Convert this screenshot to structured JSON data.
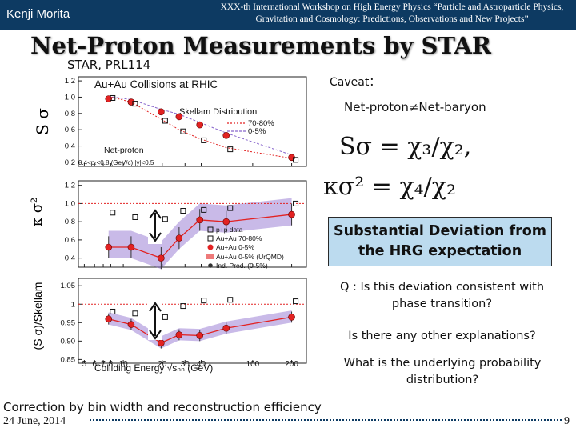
{
  "header": {
    "author": "Kenji Morita",
    "conference": "XXX-th International Workshop on High Energy Physics “Particle and Astroparticle Physics, Gravitation and Cosmology: Predictions, Observations and New Projects”",
    "bg_color": "#0d3a62"
  },
  "slide": {
    "title": "Net-Proton Measurements by STAR",
    "reference": "STAR, PRL114",
    "caveat": "Caveat：",
    "caveat_detail": "Net-proton≠Net-baryon",
    "formula_1": "Sσ = χ₃/χ₂,",
    "formula_2": "κσ² = χ₄/χ₂",
    "highlight": "Substantial Deviation from the HRG expectation",
    "highlight_bg": "#bcdbef",
    "question_1": "Q : Is this deviation consistent with phase transition?",
    "question_2": "Is there any other explanations?",
    "question_3": "What is the underlying probability distribution?",
    "footnote": "Correction by bin width and reconstruction efficiency"
  },
  "footer": {
    "date": "24 June, 2014",
    "page": "9"
  },
  "plot": {
    "panel_title": "Au+Au Collisions at RHIC",
    "skellam_legend_title": "Skellam Distribution",
    "skellam_legend": [
      "70-80%",
      "0-5%"
    ],
    "net_proton_label": "Net-proton",
    "cut_label": "0.4<pₜ<0.8 (GeV/c) |y|<0.5",
    "legend": [
      "p+p data",
      "Au+Au 70-80%",
      "Au+Au 0-5%",
      "Au+Au 0-5% (UrQMD)",
      "Ind. Prod. (0-5%)"
    ],
    "ylabels": [
      "S σ",
      "κ σ²",
      "(S σ)/Skellam"
    ],
    "xlabel": "Colliding Energy √sₙₙ (GeV)",
    "x_ticks": [
      "5",
      "6",
      "7",
      "8",
      "10",
      "20",
      "30",
      "40",
      "100",
      "200"
    ],
    "y_ticks": [
      [
        "1.2",
        "1.0",
        "0.8",
        "0.6",
        "0.4",
        "0.2"
      ],
      [
        "1.2",
        "1.0",
        "0.8",
        "0.6",
        "0.4"
      ],
      [
        "1.05",
        "1",
        "0.95",
        "0.90",
        "0.85"
      ]
    ],
    "ylim": [
      [
        0.15,
        1.25
      ],
      [
        0.3,
        1.25
      ],
      [
        0.84,
        1.07
      ]
    ],
    "energies": [
      7.7,
      11.5,
      19.6,
      27,
      39,
      62.4,
      200
    ],
    "central": [
      [
        0.98,
        0.94,
        0.82,
        0.76,
        0.66,
        0.53,
        0.26
      ],
      [
        0.52,
        0.52,
        0.4,
        0.62,
        0.82,
        0.8,
        0.88
      ],
      [
        0.96,
        0.945,
        0.895,
        0.917,
        0.915,
        0.935,
        0.965
      ]
    ],
    "peripheral": [
      [
        0.99,
        0.92,
        0.71,
        0.58,
        0.47,
        0.36,
        0.23
      ],
      [
        0.9,
        0.85,
        0.83,
        0.92,
        0.93,
        0.95,
        1.0
      ],
      [
        0.98,
        0.975,
        0.965,
        0.995,
        1.01,
        1.012,
        1.008
      ]
    ],
    "colors": {
      "central": "#e22222",
      "peripheral": "#111111",
      "band": "#8866cc"
    }
  }
}
